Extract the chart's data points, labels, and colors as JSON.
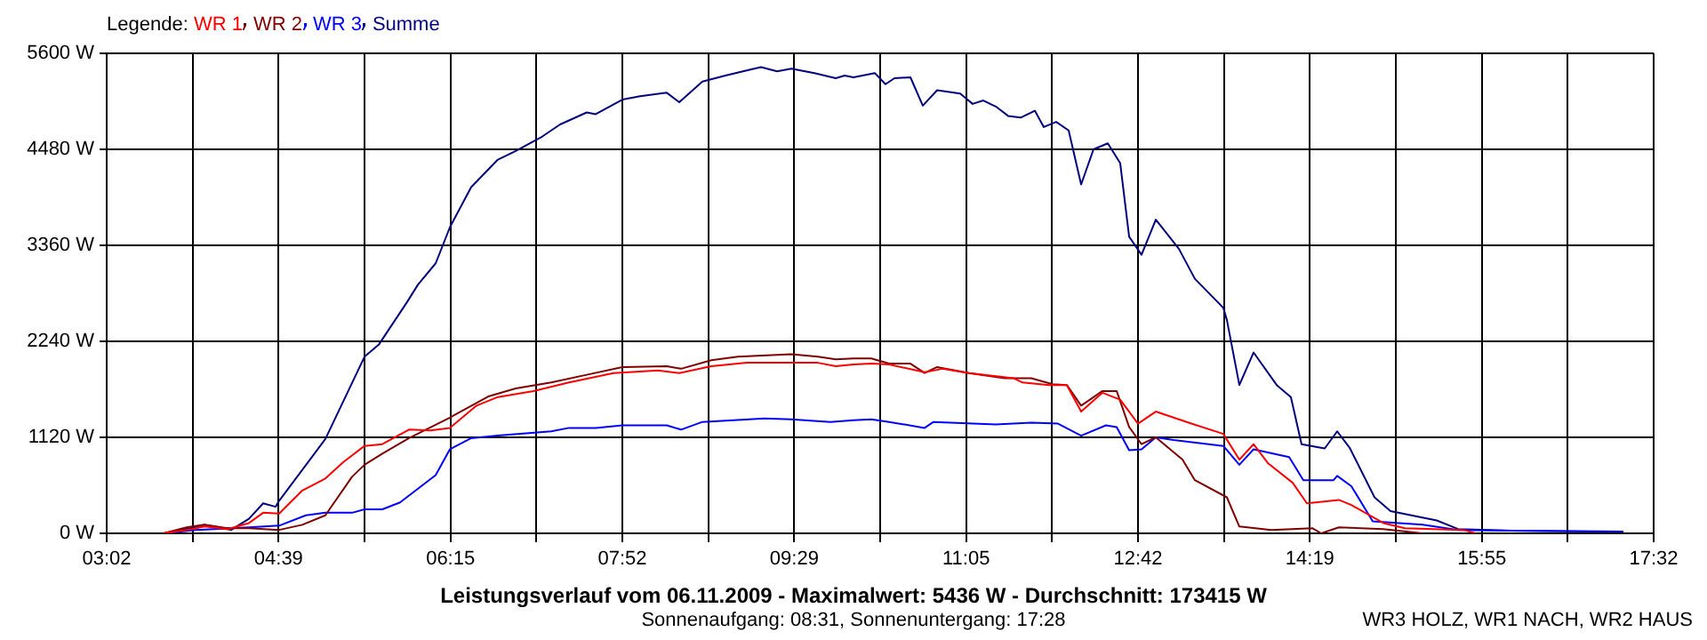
{
  "chart_data": {
    "type": "line",
    "title": "Leistungsverlauf vom 06.11.2009 - Maximalwert: 5436 W - Durchschnitt: 173415 W",
    "subtitle": "Sonnenaufgang: 08:31, Sonnenuntergang: 17:28",
    "annotations": [
      "WR3 HOLZ, WR1 NACH, WR2 HAUS"
    ],
    "legend_title": "Legende:",
    "legend": "top left",
    "grid": true,
    "marker": "none",
    "xlim": [
      3.0333,
      17.5333
    ],
    "xticks": [
      {
        "value": 3.0333,
        "label": "03:02"
      },
      {
        "value": 3.8389,
        "label": null
      },
      {
        "value": 4.6444,
        "label": "04:39"
      },
      {
        "value": 5.45,
        "label": null
      },
      {
        "value": 6.2556,
        "label": "06:15"
      },
      {
        "value": 7.0611,
        "label": null
      },
      {
        "value": 7.8667,
        "label": "07:52"
      },
      {
        "value": 8.6722,
        "label": null
      },
      {
        "value": 9.4778,
        "label": "09:29"
      },
      {
        "value": 10.2833,
        "label": null
      },
      {
        "value": 11.0889,
        "label": "11:05"
      },
      {
        "value": 11.8944,
        "label": null
      },
      {
        "value": 12.7,
        "label": "12:42"
      },
      {
        "value": 13.5056,
        "label": null
      },
      {
        "value": 14.3111,
        "label": "14:19"
      },
      {
        "value": 15.1167,
        "label": null
      },
      {
        "value": 15.9222,
        "label": "15:55"
      },
      {
        "value": 16.7278,
        "label": null
      },
      {
        "value": 17.5333,
        "label": "17:32"
      }
    ],
    "ylim": [
      0,
      5600
    ],
    "yticks": [
      {
        "value": 0,
        "label": "0 W"
      },
      {
        "value": 1120,
        "label": "1120 W"
      },
      {
        "value": 2240,
        "label": "2240 W"
      },
      {
        "value": 3360,
        "label": "3360 W"
      },
      {
        "value": 4480,
        "label": "4480 W"
      },
      {
        "value": 5600,
        "label": "5600 W"
      }
    ],
    "series": [
      {
        "name": "WR 1",
        "color": "#ff0000",
        "x": [
          3.567,
          3.833,
          3.95,
          4.167,
          4.367,
          4.5,
          4.65,
          4.867,
          5.083,
          5.25,
          5.45,
          5.617,
          5.867,
          6.067,
          6.25,
          6.5,
          6.7,
          7.033,
          7.367,
          7.783,
          8.2,
          8.4,
          8.7,
          9.033,
          9.7,
          9.867,
          10.033,
          10.2,
          10.367,
          10.7,
          10.867,
          11.117,
          11.533,
          11.617,
          11.867,
          12.033,
          12.167,
          12.367,
          12.533,
          12.7,
          12.867,
          13.2,
          13.5,
          13.65,
          13.783,
          13.917,
          14.15,
          14.283,
          14.583,
          14.7,
          15,
          15.2,
          15.75,
          15.867
        ],
        "values": [
          0,
          50,
          80,
          50,
          120,
          240,
          230,
          500,
          640,
          830,
          1020,
          1040,
          1210,
          1200,
          1230,
          1490,
          1590,
          1660,
          1760,
          1870,
          1900,
          1870,
          1950,
          1990,
          1990,
          1950,
          1970,
          1980,
          1970,
          1880,
          1920,
          1870,
          1810,
          1760,
          1730,
          1730,
          1420,
          1640,
          1560,
          1280,
          1420,
          1280,
          1160,
          860,
          1040,
          820,
          590,
          350,
          390,
          330,
          120,
          60,
          40,
          0
        ]
      },
      {
        "name": "WR 2",
        "color": "#800000",
        "x": [
          3.567,
          3.783,
          3.95,
          4.167,
          4.367,
          4.65,
          4.867,
          5.083,
          5.333,
          5.45,
          5.617,
          5.867,
          6.25,
          6.617,
          6.867,
          7.2,
          7.533,
          7.867,
          8.283,
          8.417,
          8.7,
          8.95,
          9.45,
          9.7,
          9.867,
          10.033,
          10.2,
          10.367,
          10.567,
          10.7,
          10.817,
          11.117,
          11.45,
          11.7,
          11.9,
          12.033,
          12.167,
          12.367,
          12.5,
          12.617,
          12.733,
          12.867,
          13.117,
          13.233,
          13.533,
          13.65,
          13.95,
          14.333,
          14.417,
          14.583,
          15,
          15.367
        ],
        "values": [
          0,
          70,
          100,
          60,
          60,
          40,
          100,
          210,
          660,
          800,
          930,
          1110,
          1350,
          1600,
          1690,
          1760,
          1850,
          1940,
          1950,
          1920,
          2020,
          2060,
          2090,
          2060,
          2030,
          2040,
          2040,
          1980,
          1980,
          1870,
          1940,
          1870,
          1810,
          1810,
          1740,
          1730,
          1490,
          1660,
          1660,
          1240,
          1040,
          1120,
          860,
          620,
          420,
          80,
          40,
          60,
          0,
          70,
          50,
          0
        ]
      },
      {
        "name": "WR 3",
        "color": "#0000ff",
        "x": [
          3.567,
          3.867,
          4.367,
          4.65,
          4.9,
          5.083,
          5.333,
          5.45,
          5.617,
          5.783,
          6.117,
          6.25,
          6.45,
          6.7,
          7.2,
          7.367,
          7.617,
          7.867,
          8.283,
          8.417,
          8.617,
          9.2,
          9.45,
          9.817,
          10.033,
          10.2,
          10.367,
          10.7,
          10.783,
          11.367,
          11.7,
          11.95,
          12.167,
          12.4,
          12.5,
          12.617,
          12.733,
          12.867,
          13.033,
          13.5,
          13.65,
          13.783,
          14.117,
          14.25,
          14.533,
          14.567,
          14.7,
          14.9,
          15.367,
          15.7,
          16.2,
          17.25
        ],
        "values": [
          0,
          40,
          70,
          90,
          210,
          240,
          240,
          280,
          280,
          360,
          680,
          980,
          1110,
          1140,
          1190,
          1230,
          1230,
          1260,
          1260,
          1210,
          1300,
          1340,
          1330,
          1300,
          1320,
          1330,
          1300,
          1230,
          1300,
          1270,
          1290,
          1280,
          1140,
          1260,
          1240,
          970,
          980,
          1120,
          1090,
          1020,
          800,
          980,
          890,
          620,
          620,
          670,
          550,
          140,
          100,
          40,
          30,
          20
        ]
      },
      {
        "name": "Summe",
        "color": "#000080",
        "x": [
          3.567,
          3.817,
          3.95,
          4.2,
          4.367,
          4.5,
          4.617,
          4.65,
          5.083,
          5.45,
          5.583,
          5.85,
          5.95,
          6.117,
          6.25,
          6.45,
          6.7,
          6.867,
          7.117,
          7.283,
          7.533,
          7.617,
          7.867,
          8.033,
          8.283,
          8.4,
          8.617,
          8.833,
          9.067,
          9.167,
          9.317,
          9.45,
          9.667,
          9.867,
          9.95,
          10.033,
          10.233,
          10.333,
          10.417,
          10.567,
          10.683,
          10.817,
          11.033,
          11.15,
          11.25,
          11.367,
          11.483,
          11.6,
          11.733,
          11.817,
          11.933,
          12.05,
          12.167,
          12.283,
          12.417,
          12.533,
          12.617,
          12.733,
          12.867,
          13.083,
          13.233,
          13.5,
          13.533,
          13.65,
          13.783,
          14,
          14.133,
          14.233,
          14.45,
          14.567,
          14.683,
          14.917,
          15.067,
          15.5,
          15.7,
          16.2,
          17.25
        ],
        "values": [
          0,
          60,
          100,
          40,
          170,
          350,
          310,
          380,
          1100,
          2060,
          2200,
          2700,
          2900,
          3150,
          3570,
          4040,
          4360,
          4460,
          4630,
          4770,
          4910,
          4890,
          5060,
          5100,
          5140,
          5030,
          5270,
          5340,
          5410,
          5440,
          5390,
          5420,
          5370,
          5310,
          5340,
          5320,
          5370,
          5240,
          5310,
          5320,
          4990,
          5170,
          5130,
          5010,
          5050,
          4980,
          4870,
          4850,
          4930,
          4740,
          4800,
          4700,
          4070,
          4480,
          4550,
          4320,
          3460,
          3250,
          3660,
          3320,
          2970,
          2630,
          2490,
          1730,
          2110,
          1730,
          1590,
          1040,
          990,
          1190,
          1000,
          420,
          260,
          150,
          50,
          30,
          20
        ]
      }
    ]
  }
}
